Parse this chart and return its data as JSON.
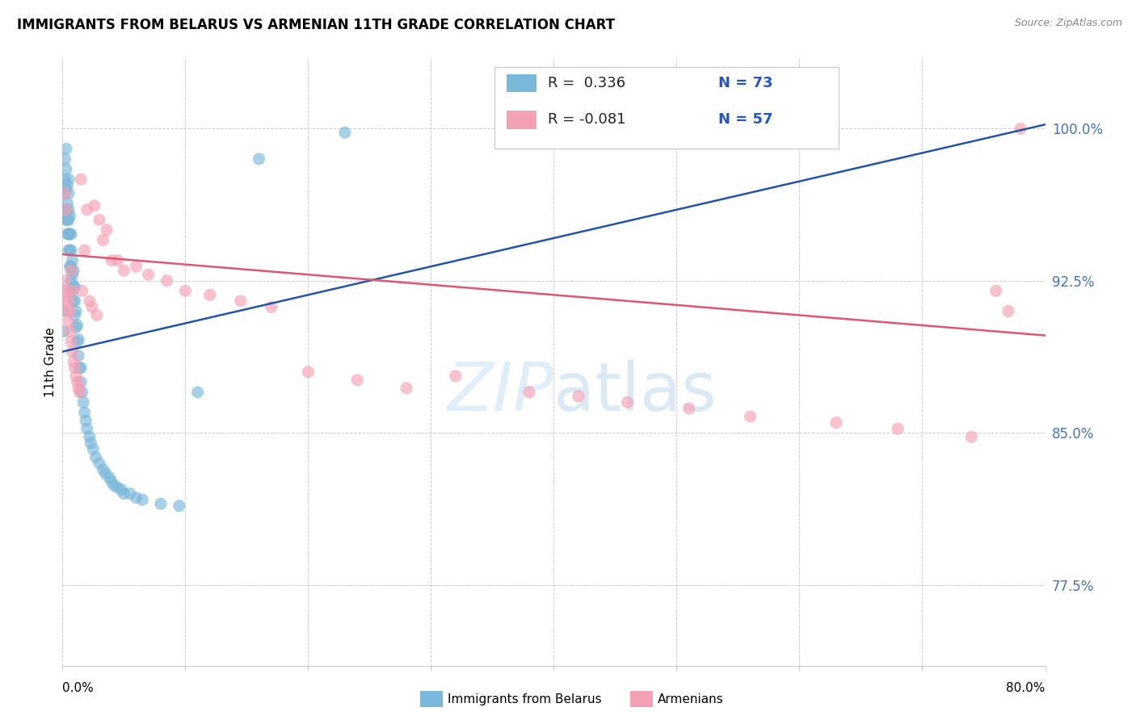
{
  "title": "IMMIGRANTS FROM BELARUS VS ARMENIAN 11TH GRADE CORRELATION CHART",
  "source": "Source: ZipAtlas.com",
  "ylabel": "11th Grade",
  "ytick_values": [
    1.0,
    0.925,
    0.85,
    0.775
  ],
  "ytick_labels": [
    "100.0%",
    "92.5%",
    "85.0%",
    "77.5%"
  ],
  "xmin": 0.0,
  "xmax": 0.8,
  "ymin": 0.735,
  "ymax": 1.035,
  "legend_r_blue": "0.336",
  "legend_n_blue": "73",
  "legend_r_pink": "-0.081",
  "legend_n_pink": "57",
  "blue_color": "#7ab8d9",
  "pink_color": "#f4a0b5",
  "trend_blue": "#2255aa",
  "trend_pink": "#e05575",
  "blue_scatter_x": [
    0.001,
    0.001,
    0.002,
    0.002,
    0.002,
    0.002,
    0.003,
    0.003,
    0.003,
    0.003,
    0.003,
    0.004,
    0.004,
    0.004,
    0.004,
    0.005,
    0.005,
    0.005,
    0.005,
    0.005,
    0.005,
    0.006,
    0.006,
    0.006,
    0.006,
    0.007,
    0.007,
    0.007,
    0.007,
    0.008,
    0.008,
    0.008,
    0.009,
    0.009,
    0.009,
    0.01,
    0.01,
    0.01,
    0.011,
    0.011,
    0.012,
    0.012,
    0.013,
    0.013,
    0.014,
    0.015,
    0.015,
    0.016,
    0.017,
    0.018,
    0.019,
    0.02,
    0.022,
    0.023,
    0.025,
    0.027,
    0.03,
    0.033,
    0.035,
    0.038,
    0.04,
    0.042,
    0.045,
    0.048,
    0.05,
    0.055,
    0.06,
    0.065,
    0.08,
    0.095,
    0.11,
    0.16,
    0.23
  ],
  "blue_scatter_y": [
    0.9,
    0.91,
    0.96,
    0.968,
    0.975,
    0.985,
    0.955,
    0.96,
    0.97,
    0.98,
    0.99,
    0.948,
    0.955,
    0.963,
    0.972,
    0.94,
    0.948,
    0.955,
    0.96,
    0.968,
    0.975,
    0.932,
    0.94,
    0.948,
    0.957,
    0.925,
    0.932,
    0.94,
    0.948,
    0.92,
    0.928,
    0.935,
    0.915,
    0.922,
    0.93,
    0.908,
    0.915,
    0.922,
    0.902,
    0.91,
    0.895,
    0.903,
    0.888,
    0.896,
    0.882,
    0.875,
    0.882,
    0.87,
    0.865,
    0.86,
    0.856,
    0.852,
    0.848,
    0.845,
    0.842,
    0.838,
    0.835,
    0.832,
    0.83,
    0.828,
    0.826,
    0.824,
    0.823,
    0.822,
    0.82,
    0.82,
    0.818,
    0.817,
    0.815,
    0.814,
    0.87,
    0.985,
    0.998
  ],
  "pink_scatter_x": [
    0.001,
    0.002,
    0.002,
    0.003,
    0.003,
    0.004,
    0.004,
    0.005,
    0.005,
    0.006,
    0.006,
    0.007,
    0.007,
    0.008,
    0.008,
    0.009,
    0.01,
    0.011,
    0.012,
    0.013,
    0.014,
    0.015,
    0.016,
    0.018,
    0.02,
    0.022,
    0.024,
    0.026,
    0.028,
    0.03,
    0.033,
    0.036,
    0.04,
    0.045,
    0.05,
    0.06,
    0.07,
    0.085,
    0.1,
    0.12,
    0.145,
    0.17,
    0.2,
    0.24,
    0.28,
    0.32,
    0.38,
    0.42,
    0.46,
    0.51,
    0.56,
    0.63,
    0.68,
    0.74,
    0.76,
    0.77,
    0.78
  ],
  "pink_scatter_y": [
    0.92,
    0.925,
    0.968,
    0.915,
    0.96,
    0.91,
    0.92,
    0.905,
    0.915,
    0.9,
    0.91,
    0.895,
    0.93,
    0.89,
    0.92,
    0.885,
    0.882,
    0.878,
    0.875,
    0.872,
    0.87,
    0.975,
    0.92,
    0.94,
    0.96,
    0.915,
    0.912,
    0.962,
    0.908,
    0.955,
    0.945,
    0.95,
    0.935,
    0.935,
    0.93,
    0.932,
    0.928,
    0.925,
    0.92,
    0.918,
    0.915,
    0.912,
    0.88,
    0.876,
    0.872,
    0.878,
    0.87,
    0.868,
    0.865,
    0.862,
    0.858,
    0.855,
    0.852,
    0.848,
    0.92,
    0.91,
    1.0
  ],
  "blue_trend_x0": 0.0,
  "blue_trend_x1": 0.8,
  "blue_trend_y0": 0.89,
  "blue_trend_y1": 1.002,
  "pink_trend_x0": 0.0,
  "pink_trend_x1": 0.8,
  "pink_trend_y0": 0.938,
  "pink_trend_y1": 0.898
}
